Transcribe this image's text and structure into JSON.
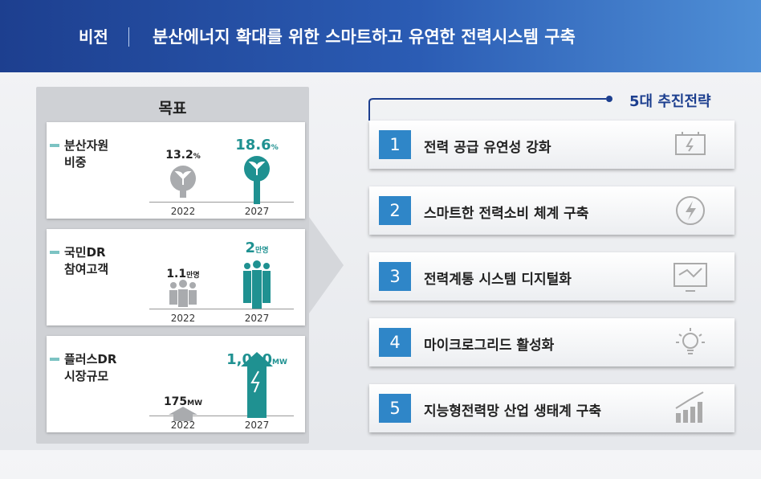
{
  "header": {
    "label": "비전",
    "title": "분산에너지 확대를 위한 스마트하고 유연한 전력시스템 구축"
  },
  "goals": {
    "title": "목표",
    "items": [
      {
        "label": [
          "분산자원",
          "비중"
        ],
        "before": {
          "value": "13.2",
          "unit": "%",
          "year": "2022"
        },
        "after": {
          "value": "18.6",
          "unit": "%",
          "year": "2027"
        }
      },
      {
        "label": [
          "국민DR",
          "참여고객"
        ],
        "before": {
          "value": "1.1",
          "unit": "만명",
          "year": "2022"
        },
        "after": {
          "value": "2",
          "unit": "만명",
          "year": "2027"
        }
      },
      {
        "label": [
          "플러스DR",
          "시장규모"
        ],
        "before": {
          "value": "175",
          "unit": "MW",
          "year": "2022"
        },
        "after": {
          "value": "1,000",
          "unit": "MW",
          "year": "2027"
        }
      }
    ]
  },
  "strategies": {
    "title": "5대 추진전략",
    "items": [
      {
        "number": "1",
        "text": "전력 공급 유연성 강화"
      },
      {
        "number": "2",
        "text": "스마트한 전력소비 체계 구축"
      },
      {
        "number": "3",
        "text": "전력계통 시스템 디지털화"
      },
      {
        "number": "4",
        "text": "마이크로그리드 활성화"
      },
      {
        "number": "5",
        "text": "지능형전력망 산업 생태계 구축"
      }
    ]
  }
}
